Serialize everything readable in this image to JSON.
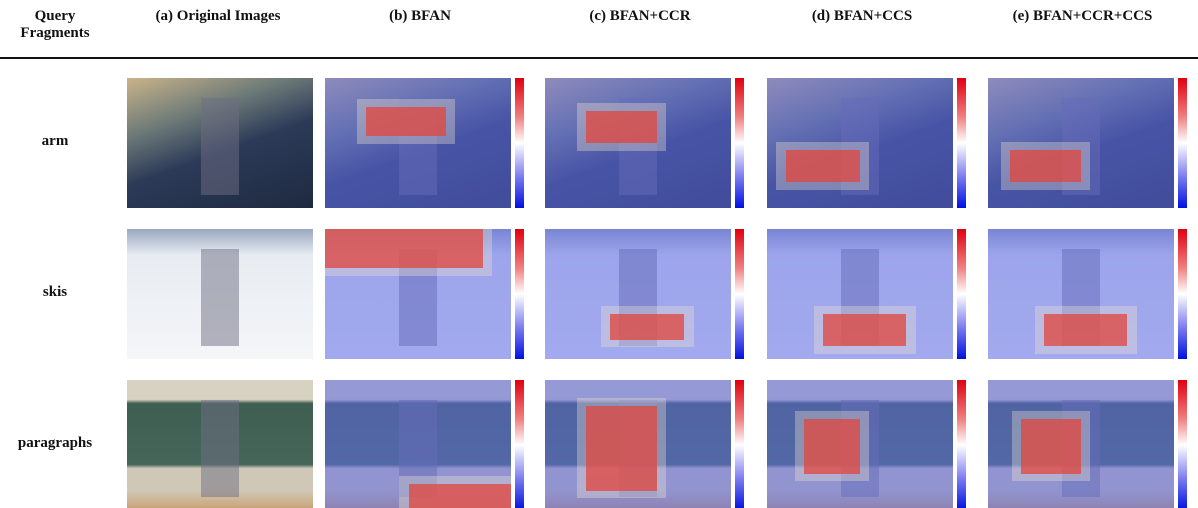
{
  "header": {
    "columns": [
      "Query Fragments",
      "(a) Original Images",
      "(b) BFAN",
      "(c) BFAN+CCR",
      "(d) BFAN+CCS",
      "(e) BFAN+CCR+CCS"
    ]
  },
  "rows": [
    {
      "label": "arm"
    },
    {
      "label": "skis"
    },
    {
      "label": "paragraphs"
    }
  ]
}
